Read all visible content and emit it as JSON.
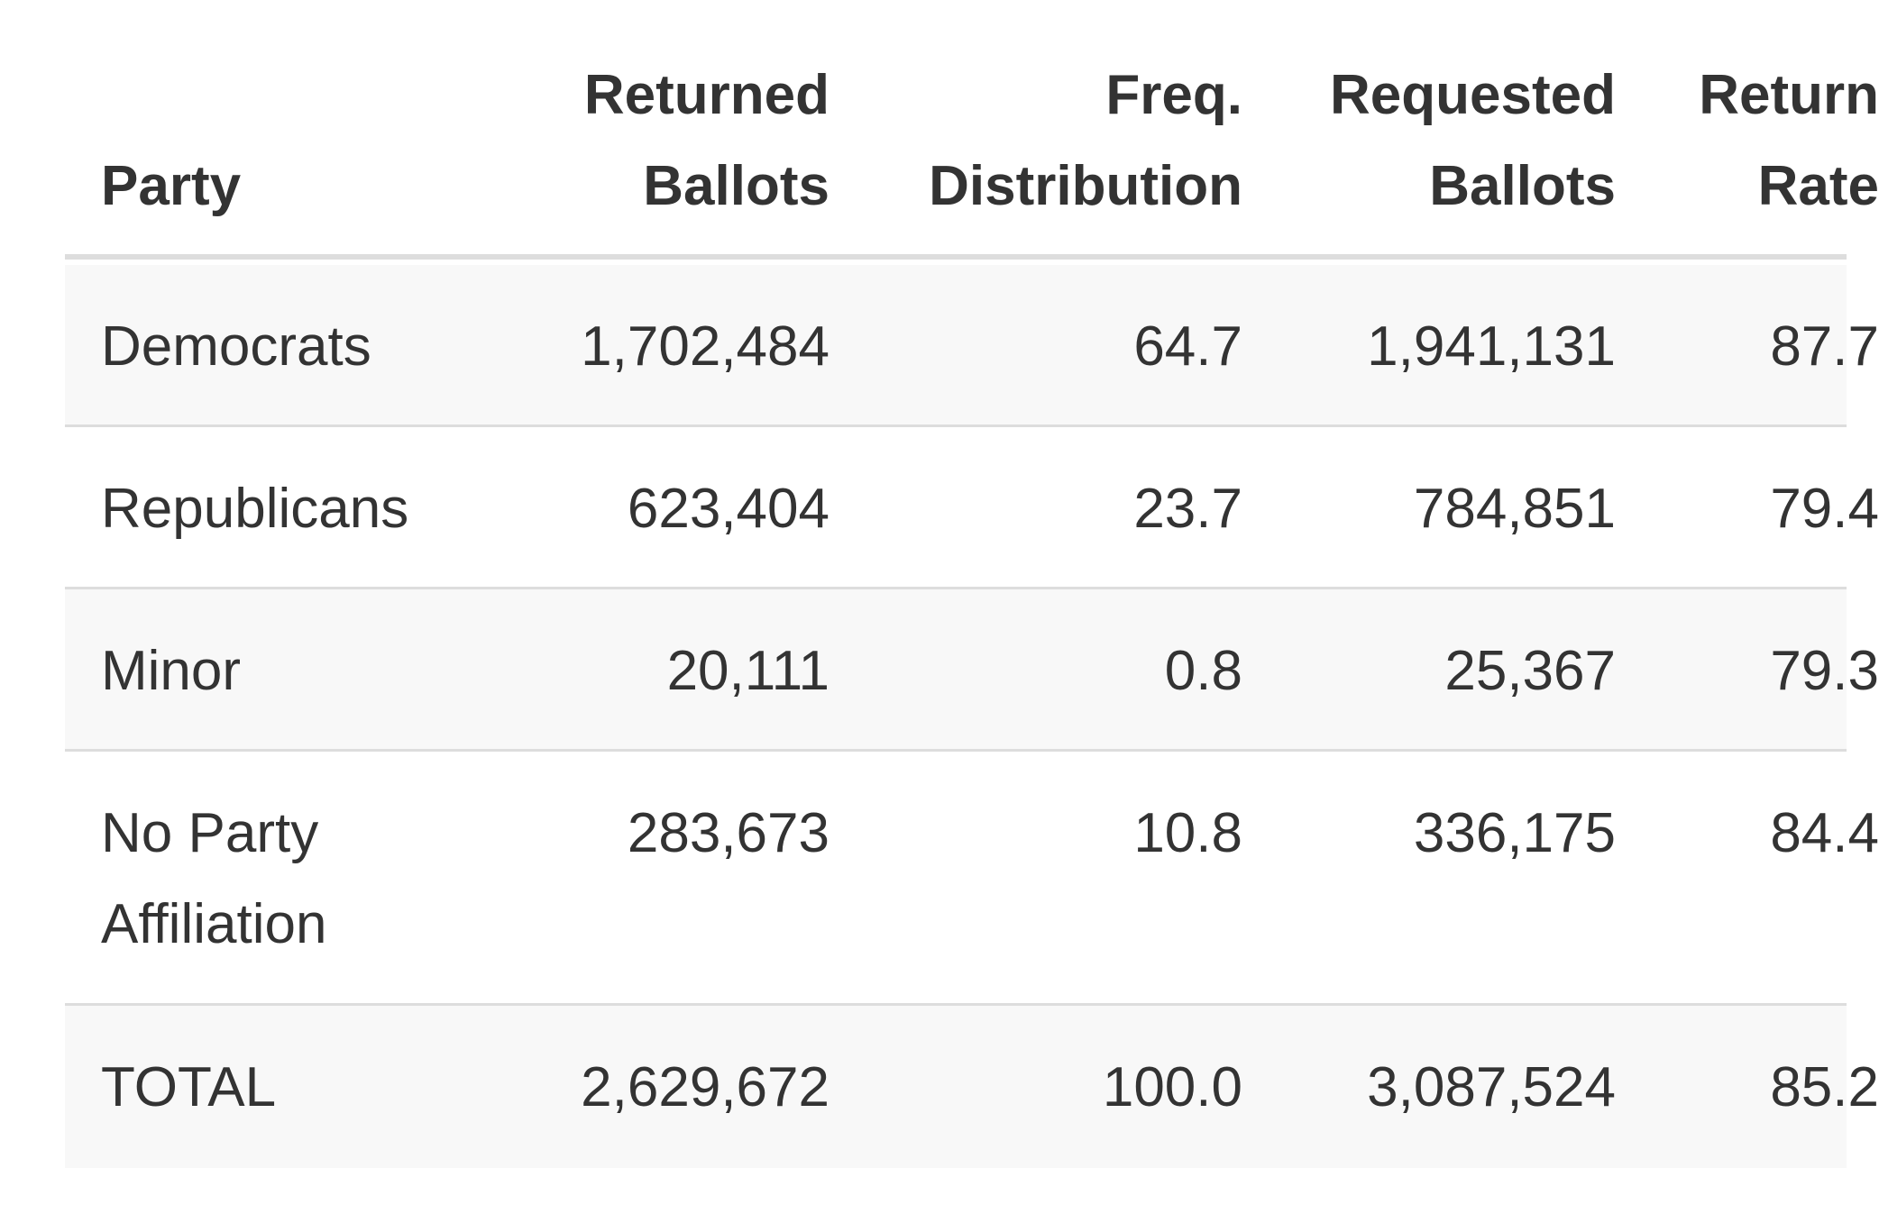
{
  "table": {
    "headers": [
      "Party",
      "Returned\nBallots",
      "Freq.\nDistribution",
      "Requested\nBallots",
      "Return\nRate"
    ],
    "rows": [
      {
        "party": "Democrats",
        "returned": "1,702,484",
        "freq": "64.7",
        "requested": "1,941,131",
        "rate": "87.7"
      },
      {
        "party": "Republicans",
        "returned": "623,404",
        "freq": "23.7",
        "requested": "784,851",
        "rate": "79.4"
      },
      {
        "party": "Minor",
        "returned": "20,111",
        "freq": "0.8",
        "requested": "25,367",
        "rate": "79.3"
      },
      {
        "party": "No Party\nAffiliation",
        "returned": "283,673",
        "freq": "10.8",
        "requested": "336,175",
        "rate": "84.4"
      },
      {
        "party": "TOTAL",
        "returned": "2,629,672",
        "freq": "100.0",
        "requested": "3,087,524",
        "rate": "85.2"
      }
    ]
  }
}
